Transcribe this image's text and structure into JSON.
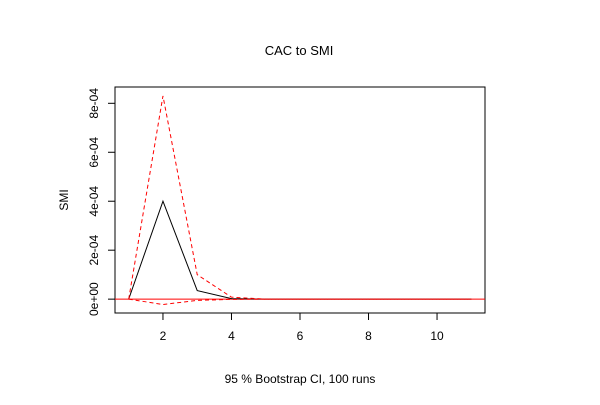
{
  "chart_data": {
    "type": "line",
    "title": "CAC to SMI",
    "xlabel": "95 % Bootstrap CI,  100 runs",
    "ylabel": "SMI",
    "xlim": [
      0.6,
      11.4
    ],
    "ylim": [
      -5.66e-05,
      0.0008666
    ],
    "x_ticks": [
      2,
      4,
      6,
      8,
      10
    ],
    "x_tick_labels": [
      "2",
      "4",
      "6",
      "8",
      "10"
    ],
    "y_ticks": [
      0,
      0.0002,
      0.0004,
      0.0006,
      0.0008
    ],
    "y_tick_labels": [
      "0e+00",
      "2e-04",
      "4e-04",
      "6e-04",
      "8e-04"
    ],
    "grid": false,
    "legend": "none",
    "x": [
      1,
      2,
      3,
      4,
      5,
      6,
      7,
      8,
      9,
      10,
      11
    ],
    "series": [
      {
        "role": "estimate",
        "color": "#000000",
        "style": "solid",
        "values": [
          0,
          0.0004,
          3.5e-05,
          2e-06,
          0,
          0,
          0,
          0,
          0,
          0,
          0
        ]
      },
      {
        "role": "upper-ci",
        "color": "#ff0000",
        "style": "dashed",
        "values": [
          0,
          0.00083,
          0.0001,
          8e-06,
          0,
          0,
          0,
          0,
          0,
          0,
          0
        ]
      },
      {
        "role": "lower-ci",
        "color": "#ff0000",
        "style": "dashed",
        "values": [
          0,
          -2.2e-05,
          -5e-06,
          -1e-06,
          0,
          0,
          0,
          0,
          0,
          0,
          0
        ]
      }
    ],
    "reference_line": {
      "orientation": "horizontal",
      "value": 0,
      "color": "#ff0000"
    }
  }
}
